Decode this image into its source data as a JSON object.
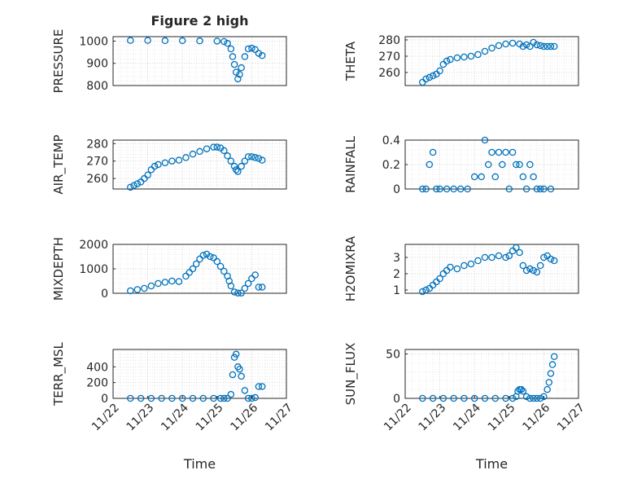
{
  "chart_data": [
    {
      "type": "scatter",
      "name": "pressure",
      "title": "Figure 2 high",
      "xlabel": "",
      "ylabel": "PRESSURE",
      "ylim": [
        800,
        1020
      ],
      "yticks": [
        800,
        900,
        1000
      ],
      "x": [
        22.5,
        23.0,
        23.5,
        24.0,
        24.5,
        25.0,
        25.2,
        25.3,
        25.4,
        25.45,
        25.5,
        25.55,
        25.6,
        25.65,
        25.7,
        25.8,
        25.9,
        26.0,
        26.1,
        26.2,
        26.3
      ],
      "y": [
        1003,
        1003,
        1002,
        1002,
        1001,
        1000,
        998,
        990,
        965,
        930,
        895,
        860,
        830,
        850,
        880,
        930,
        965,
        968,
        962,
        945,
        935
      ]
    },
    {
      "type": "scatter",
      "name": "theta",
      "title": "",
      "xlabel": "",
      "ylabel": "THETA",
      "ylim": [
        252,
        282
      ],
      "yticks": [
        260,
        270,
        280
      ],
      "x": [
        22.5,
        22.6,
        22.7,
        22.8,
        22.9,
        23.0,
        23.1,
        23.2,
        23.3,
        23.5,
        23.7,
        23.9,
        24.1,
        24.3,
        24.5,
        24.7,
        24.9,
        25.1,
        25.3,
        25.4,
        25.5,
        25.6,
        25.7,
        25.8,
        25.9,
        26.0,
        26.1,
        26.2,
        26.3
      ],
      "y": [
        254,
        256,
        257,
        258,
        259,
        261,
        265,
        267,
        268,
        269,
        269.5,
        270,
        271,
        273,
        275,
        276.5,
        277.5,
        278,
        277.5,
        276,
        277,
        276,
        278.5,
        277,
        276.5,
        276,
        276,
        276,
        276
      ]
    },
    {
      "type": "scatter",
      "name": "air_temp",
      "title": "",
      "xlabel": "",
      "ylabel": "AIR_TEMP",
      "ylim": [
        254,
        282
      ],
      "yticks": [
        260,
        270,
        280
      ],
      "x": [
        22.5,
        22.6,
        22.7,
        22.8,
        22.9,
        23.0,
        23.1,
        23.2,
        23.3,
        23.5,
        23.7,
        23.9,
        24.1,
        24.3,
        24.5,
        24.7,
        24.9,
        25.0,
        25.1,
        25.2,
        25.3,
        25.4,
        25.5,
        25.55,
        25.6,
        25.7,
        25.8,
        25.9,
        26.0,
        26.1,
        26.2,
        26.3
      ],
      "y": [
        255,
        256,
        257,
        258,
        260,
        262,
        265,
        267,
        268,
        269,
        270,
        270.5,
        272,
        274,
        275.5,
        277,
        278,
        278,
        277.5,
        276,
        273,
        270,
        267,
        265,
        264,
        267,
        270,
        272.5,
        272.5,
        272,
        271.5,
        270.5
      ]
    },
    {
      "type": "scatter",
      "name": "rainfall",
      "title": "",
      "xlabel": "",
      "ylabel": "RAINFALL",
      "ylim": [
        0,
        0.4
      ],
      "yticks": [
        0,
        0.2,
        0.4
      ],
      "x": [
        22.5,
        22.6,
        22.7,
        22.8,
        22.9,
        23.0,
        23.2,
        23.4,
        23.6,
        23.8,
        24.0,
        24.2,
        24.3,
        24.4,
        24.5,
        24.6,
        24.7,
        24.8,
        24.9,
        25.0,
        25.1,
        25.2,
        25.3,
        25.4,
        25.5,
        25.6,
        25.7,
        25.8,
        25.9,
        26.0,
        26.2
      ],
      "y": [
        0,
        0,
        0.2,
        0.3,
        0,
        0,
        0,
        0,
        0,
        0,
        0.1,
        0.1,
        0.4,
        0.2,
        0.3,
        0.1,
        0.3,
        0.2,
        0.3,
        0,
        0.3,
        0.2,
        0.2,
        0.1,
        0,
        0.2,
        0.1,
        0,
        0,
        0,
        0
      ]
    },
    {
      "type": "scatter",
      "name": "mixdepth",
      "title": "",
      "xlabel": "",
      "ylabel": "MIXDEPTH",
      "ylim": [
        0,
        2000
      ],
      "yticks": [
        0,
        1000,
        2000
      ],
      "x": [
        22.5,
        22.7,
        22.9,
        23.1,
        23.3,
        23.5,
        23.7,
        23.9,
        24.1,
        24.2,
        24.3,
        24.4,
        24.5,
        24.6,
        24.7,
        24.8,
        24.9,
        25.0,
        25.1,
        25.2,
        25.3,
        25.35,
        25.4,
        25.5,
        25.6,
        25.7,
        25.8,
        25.9,
        26.0,
        26.1,
        26.2,
        26.3
      ],
      "y": [
        100,
        150,
        200,
        300,
        400,
        450,
        500,
        480,
        700,
        850,
        1000,
        1200,
        1400,
        1550,
        1600,
        1500,
        1450,
        1300,
        1100,
        900,
        700,
        500,
        300,
        50,
        10,
        10,
        200,
        400,
        600,
        750,
        250,
        250
      ]
    },
    {
      "type": "scatter",
      "name": "h2omixra",
      "title": "",
      "xlabel": "",
      "ylabel": "H2OMIXRA",
      "ylim": [
        0.8,
        3.8
      ],
      "yticks": [
        1,
        2,
        3
      ],
      "x": [
        22.5,
        22.6,
        22.7,
        22.8,
        22.9,
        23.0,
        23.1,
        23.2,
        23.3,
        23.5,
        23.7,
        23.9,
        24.1,
        24.3,
        24.5,
        24.7,
        24.9,
        25.0,
        25.1,
        25.2,
        25.3,
        25.4,
        25.5,
        25.6,
        25.7,
        25.8,
        25.9,
        26.0,
        26.1,
        26.2,
        26.3
      ],
      "y": [
        0.9,
        1.0,
        1.1,
        1.3,
        1.5,
        1.7,
        2.0,
        2.2,
        2.4,
        2.3,
        2.5,
        2.6,
        2.8,
        3.0,
        3.0,
        3.1,
        3.0,
        3.1,
        3.4,
        3.6,
        3.3,
        2.5,
        2.2,
        2.3,
        2.2,
        2.1,
        2.5,
        3.0,
        3.1,
        2.9,
        2.8
      ]
    },
    {
      "type": "scatter",
      "name": "terr_msl",
      "title": "",
      "xlabel": "Time",
      "ylabel": "TERR_MSL",
      "ylim": [
        0,
        620
      ],
      "yticks": [
        0,
        200,
        400
      ],
      "x": [
        22.5,
        22.8,
        23.1,
        23.4,
        23.7,
        24.0,
        24.3,
        24.6,
        24.9,
        25.1,
        25.2,
        25.3,
        25.4,
        25.45,
        25.5,
        25.55,
        25.6,
        25.65,
        25.7,
        25.8,
        25.9,
        26.0,
        26.1,
        26.2,
        26.3
      ],
      "y": [
        0,
        0,
        0,
        0,
        0,
        0,
        0,
        0,
        0,
        0,
        0,
        0,
        50,
        300,
        520,
        560,
        400,
        370,
        280,
        100,
        0,
        0,
        10,
        150,
        150
      ]
    },
    {
      "type": "scatter",
      "name": "sun_flux",
      "title": "",
      "xlabel": "Time",
      "ylabel": "SUN_FLUX",
      "ylim": [
        0,
        55
      ],
      "yticks": [
        0,
        50
      ],
      "x": [
        22.5,
        22.8,
        23.1,
        23.4,
        23.7,
        24.0,
        24.3,
        24.6,
        24.9,
        25.1,
        25.2,
        25.25,
        25.3,
        25.35,
        25.4,
        25.5,
        25.6,
        25.7,
        25.8,
        25.9,
        26.0,
        26.1,
        26.15,
        26.2,
        26.25,
        26.3
      ],
      "y": [
        0,
        0,
        0,
        0,
        0,
        0,
        0,
        0,
        0,
        0,
        2,
        8,
        10,
        10,
        8,
        2,
        0,
        0,
        0,
        0,
        2,
        10,
        18,
        28,
        38,
        47
      ]
    }
  ],
  "xaxis": {
    "xlim": [
      22,
      27
    ],
    "ticks": [
      22,
      23,
      24,
      25,
      26,
      27
    ],
    "tick_labels": [
      "11/22",
      "11/23",
      "11/24",
      "11/25",
      "11/26",
      "11/27"
    ]
  }
}
